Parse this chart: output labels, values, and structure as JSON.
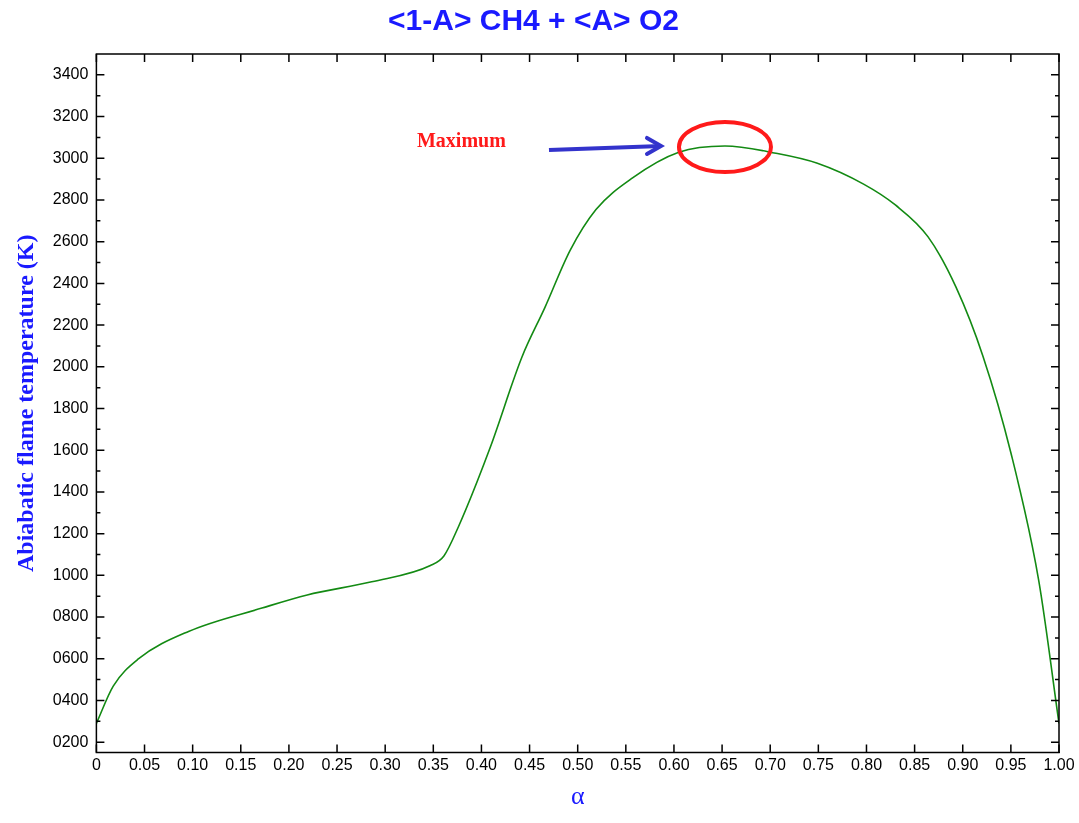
{
  "chart_data": {
    "type": "line",
    "title": "<1-A> CH4 + <A> O2",
    "xlabel": "α",
    "ylabel": "Abiabatic flame temperature (K)",
    "series": [
      {
        "color": "#138a13",
        "x": [
          0,
          0.0175,
          0.0436,
          0.0957,
          0.172,
          0.219,
          0.286,
          0.347,
          0.361,
          0.376,
          0.409,
          0.442,
          0.466,
          0.492,
          0.519,
          0.557,
          0.605,
          0.653,
          0.706,
          0.749,
          0.797,
          0.83,
          0.864,
          0.893,
          0.921,
          0.95,
          0.979,
          1
        ],
        "values": [
          290,
          469,
          599,
          731,
          843,
          906,
          969,
          1047,
          1093,
          1232,
          1612,
          2046,
          2285,
          2557,
          2754,
          2906,
          3029,
          3059,
          3024,
          2976,
          2876,
          2776,
          2623,
          2382,
          2051,
          1588,
          974,
          290
        ]
      }
    ],
    "xlim": [
      0,
      1
    ],
    "xticks": [
      {
        "value": 0,
        "label": "0"
      },
      {
        "value": 0.05,
        "label": "0.05"
      },
      {
        "value": 0.1,
        "label": "0.10"
      },
      {
        "value": 0.15,
        "label": "0.15"
      },
      {
        "value": 0.2,
        "label": "0.20"
      },
      {
        "value": 0.25,
        "label": "0.25"
      },
      {
        "value": 0.3,
        "label": "0.30"
      },
      {
        "value": 0.35,
        "label": "0.35"
      },
      {
        "value": 0.4,
        "label": "0.40"
      },
      {
        "value": 0.45,
        "label": "0.45"
      },
      {
        "value": 0.5,
        "label": "0.50"
      },
      {
        "value": 0.55,
        "label": "0.55"
      },
      {
        "value": 0.6,
        "label": "0.60"
      },
      {
        "value": 0.65,
        "label": "0.65"
      },
      {
        "value": 0.7,
        "label": "0.70"
      },
      {
        "value": 0.75,
        "label": "0.75"
      },
      {
        "value": 0.8,
        "label": "0.80"
      },
      {
        "value": 0.85,
        "label": "0.85"
      },
      {
        "value": 0.9,
        "label": "0.90"
      },
      {
        "value": 0.95,
        "label": "0.95"
      },
      {
        "value": 1,
        "label": "1.00"
      }
    ],
    "ylim": [
      150,
      3500
    ],
    "yticks": [
      {
        "value": 200,
        "label": "0200"
      },
      {
        "value": 400,
        "label": "0400"
      },
      {
        "value": 600,
        "label": "0600"
      },
      {
        "value": 800,
        "label": "0800"
      },
      1000,
      1200,
      1400,
      1600,
      1800,
      2000,
      2200,
      2400,
      2600,
      2800,
      3000,
      3200,
      3400
    ],
    "annotations": [
      "Maximum"
    ],
    "grid": false,
    "legend": false,
    "marker": "none",
    "line_style": "solid"
  }
}
